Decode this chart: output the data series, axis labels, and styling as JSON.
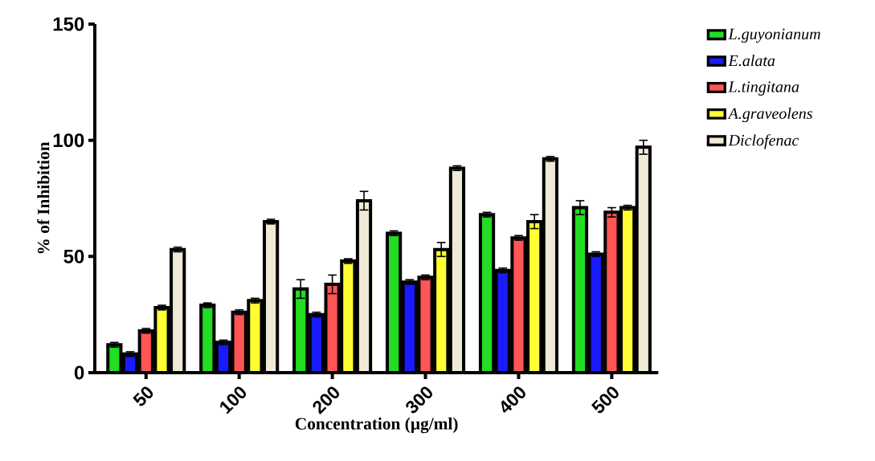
{
  "chart_data": {
    "type": "bar",
    "xlabel": "Concentration (µg/ml)",
    "ylabel": "% of Inhibition",
    "categories": [
      "50",
      "100",
      "200",
      "300",
      "400",
      "500"
    ],
    "series": [
      {
        "name": "L.guyonianum",
        "color": "#22dd22",
        "values": [
          12,
          29,
          36,
          60,
          68,
          71
        ],
        "errors": [
          1,
          1,
          4,
          1,
          1,
          3
        ]
      },
      {
        "name": "E.alata",
        "color": "#1a1aff",
        "values": [
          8,
          13,
          25,
          39,
          44,
          51
        ],
        "errors": [
          1,
          1,
          1,
          1,
          1,
          1
        ]
      },
      {
        "name": "L.tingitana",
        "color": "#ff5555",
        "values": [
          18,
          26,
          38,
          41,
          58,
          69
        ],
        "errors": [
          1,
          1,
          4,
          1,
          1,
          2
        ]
      },
      {
        "name": "A.graveolens",
        "color": "#ffff33",
        "values": [
          28,
          31,
          48,
          53,
          65,
          71
        ],
        "errors": [
          1,
          1,
          1,
          3,
          3,
          1
        ]
      },
      {
        "name": "Diclofenac",
        "color": "#efe9d6",
        "values": [
          53,
          65,
          74,
          88,
          92,
          97
        ],
        "errors": [
          1,
          1,
          4,
          1,
          1,
          3
        ]
      }
    ],
    "ylim": [
      0,
      150
    ],
    "yticks": [
      0,
      50,
      100,
      150
    ],
    "legend": "top right"
  }
}
